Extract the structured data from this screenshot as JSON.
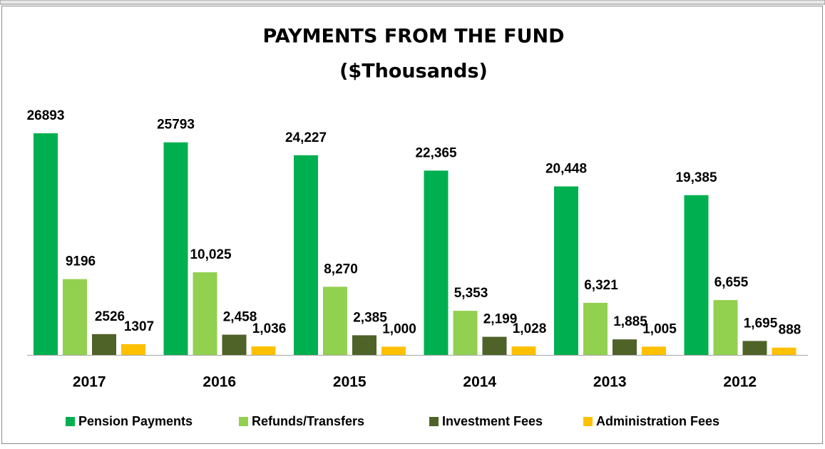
{
  "chart_data": {
    "type": "bar",
    "title": "PAYMENTS FROM THE FUND",
    "subtitle": "($Thousands)",
    "categories": [
      "2017",
      "2016",
      "2015",
      "2014",
      "2013",
      "2012"
    ],
    "series": [
      {
        "name": "Pension Payments",
        "color": "#00b050",
        "values": [
          26893,
          25793,
          24227,
          22365,
          20448,
          19385
        ],
        "value_labels": [
          "26893",
          "25793",
          "24,227",
          "22,365",
          "20,448",
          "19,385"
        ]
      },
      {
        "name": "Refunds/Transfers",
        "color": "#92d050",
        "values": [
          9196,
          10025,
          8270,
          5353,
          6321,
          6655
        ],
        "value_labels": [
          "9196",
          "10,025",
          "8,270",
          "5,353",
          "6,321",
          "6,655"
        ]
      },
      {
        "name": "Investment Fees",
        "color": "#4f6228",
        "values": [
          2526,
          2458,
          2385,
          2199,
          1885,
          1695
        ],
        "value_labels": [
          "2526",
          "2,458",
          "2,385",
          "2,199",
          "1,885",
          "1,695"
        ]
      },
      {
        "name": "Administration Fees",
        "color": "#ffc000",
        "values": [
          1307,
          1036,
          1000,
          1028,
          1005,
          888
        ],
        "value_labels": [
          "1307",
          "1,036",
          "1,000",
          "1,028",
          "1,005",
          "888"
        ]
      }
    ]
  }
}
